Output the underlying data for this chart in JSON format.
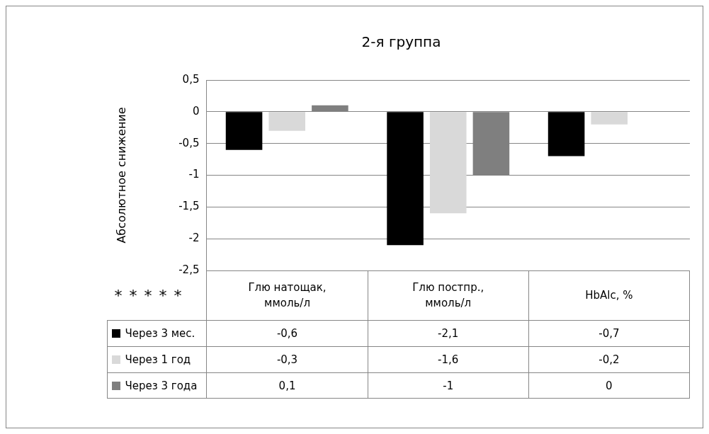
{
  "chart_data": {
    "type": "bar",
    "title": "2-я группа",
    "ylabel": "Абсолютное снижение",
    "categories": [
      "Глю натощак, ммоль/л",
      "Глю постпр., ммоль/л",
      "HbAlc, %"
    ],
    "series": [
      {
        "name": "Через 3 мес.",
        "color": "#000000",
        "values": [
          -0.6,
          -2.1,
          -0.7
        ],
        "value_labels": [
          "-0,6",
          "-2,1",
          "-0,7"
        ]
      },
      {
        "name": "Через 1 год",
        "color": "#d9d9d9",
        "values": [
          -0.3,
          -1.6,
          -0.2
        ],
        "value_labels": [
          "-0,3",
          "-1,6",
          "-0,2"
        ]
      },
      {
        "name": "Через 3 года",
        "color": "#7f7f7f",
        "values": [
          0.1,
          -1,
          0
        ],
        "value_labels": [
          "0,1",
          "-1",
          "0"
        ]
      }
    ],
    "ylim": [
      -2.5,
      0.5
    ],
    "yticks": [
      {
        "value": 0.5,
        "label": "0,5"
      },
      0,
      {
        "value": -0.5,
        "label": "-0,5"
      },
      -1,
      {
        "value": -1.5,
        "label": "-1,5"
      },
      -2,
      {
        "value": -2.5,
        "label": "-2,5"
      }
    ],
    "grid": "y",
    "legend": "bottom",
    "annotations": [
      "*",
      "*",
      "*",
      "*",
      "*"
    ]
  }
}
